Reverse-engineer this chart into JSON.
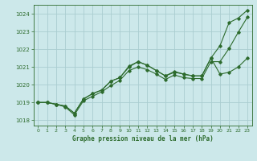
{
  "background_color": "#cce8ea",
  "grid_color": "#aacdd0",
  "line_color": "#2d6b2d",
  "title": "Graphe pression niveau de la mer (hPa)",
  "xlim": [
    -0.5,
    23.5
  ],
  "ylim": [
    1017.7,
    1024.5
  ],
  "yticks": [
    1018,
    1019,
    1020,
    1021,
    1022,
    1023,
    1024
  ],
  "xticks": [
    0,
    1,
    2,
    3,
    4,
    5,
    6,
    7,
    8,
    9,
    10,
    11,
    12,
    13,
    14,
    15,
    16,
    17,
    18,
    19,
    20,
    21,
    22,
    23
  ],
  "series": [
    [
      1019.0,
      1019.0,
      1018.9,
      1018.8,
      1018.4,
      1019.2,
      1019.5,
      1019.7,
      1020.2,
      1020.4,
      1021.05,
      1021.3,
      1021.1,
      1020.8,
      1020.5,
      1020.75,
      1020.6,
      1020.5,
      1020.5,
      1021.5,
      1022.2,
      1023.5,
      1023.75,
      1024.2
    ],
    [
      1019.0,
      1019.0,
      1018.9,
      1018.75,
      1018.3,
      1019.1,
      1019.35,
      1019.6,
      1019.95,
      1020.25,
      1020.8,
      1021.0,
      1020.85,
      1020.6,
      1020.3,
      1020.55,
      1020.4,
      1020.35,
      1020.35,
      1021.3,
      1021.3,
      1022.05,
      1022.95,
      1023.8
    ],
    [
      1019.0,
      1019.0,
      1018.9,
      1018.8,
      1018.4,
      1019.2,
      1019.5,
      1019.7,
      1020.2,
      1020.4,
      1021.0,
      1021.3,
      1021.1,
      1020.8,
      1020.5,
      1020.7,
      1020.6,
      1020.5,
      1020.5,
      1021.5,
      1020.6,
      1020.7,
      1021.0,
      1021.5
    ]
  ]
}
